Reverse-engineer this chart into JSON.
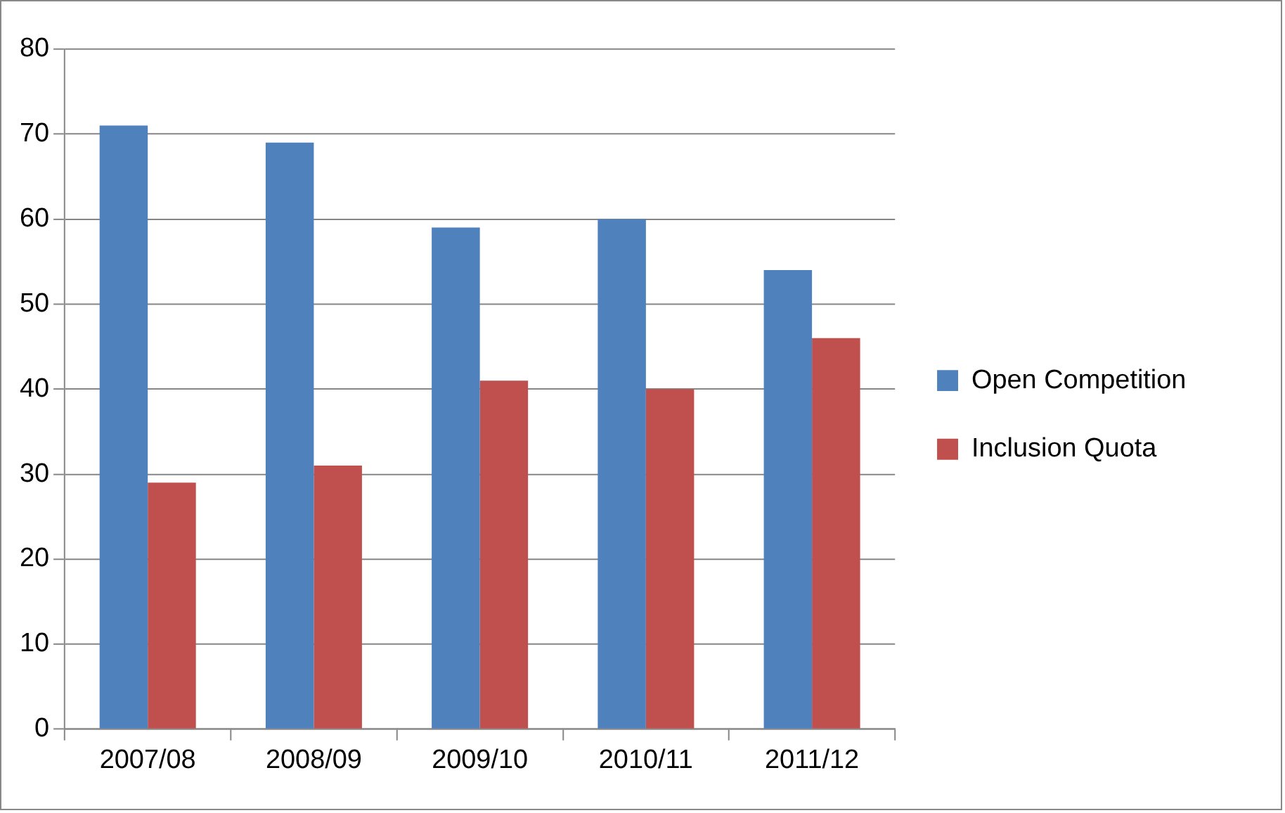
{
  "chart_data": {
    "type": "bar",
    "categories": [
      "2007/08",
      "2008/09",
      "2009/10",
      "2010/11",
      "2011/12"
    ],
    "series": [
      {
        "name": "Open Competition",
        "color": "#4f81bd",
        "values": [
          71,
          69,
          59,
          60,
          54
        ]
      },
      {
        "name": "Inclusion Quota",
        "color": "#c0504d",
        "values": [
          29,
          31,
          41,
          40,
          46
        ]
      }
    ],
    "ylim": [
      0,
      80
    ],
    "yticks": [
      0,
      10,
      20,
      30,
      40,
      50,
      60,
      70,
      80
    ],
    "grid": "y",
    "legend": "right"
  }
}
